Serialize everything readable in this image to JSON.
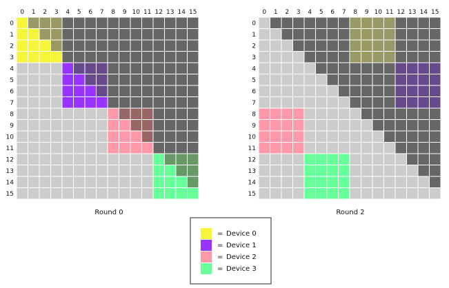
{
  "grid_size": 16,
  "palette": {
    "lower": "#cccccc",
    "upper": "#666666",
    "gridline": "#ffffff"
  },
  "devices": [
    {
      "id": 0,
      "label": "Device 0",
      "color": "#f5f53a",
      "blend": "#999966"
    },
    {
      "id": 1,
      "label": "Device 1",
      "color": "#9933ff",
      "blend": "#664a8c"
    },
    {
      "id": 2,
      "label": "Device 2",
      "color": "#ff99aa",
      "blend": "#996666"
    },
    {
      "id": 3,
      "label": "Device 3",
      "color": "#66ff99",
      "blend": "#669966"
    }
  ],
  "panels": [
    {
      "caption": "Round 0",
      "blocks": [
        {
          "device": 0,
          "rows": [
            0,
            3
          ],
          "cols": [
            0,
            3
          ]
        },
        {
          "device": 1,
          "rows": [
            4,
            7
          ],
          "cols": [
            4,
            7
          ]
        },
        {
          "device": 2,
          "rows": [
            8,
            11
          ],
          "cols": [
            8,
            11
          ]
        },
        {
          "device": 3,
          "rows": [
            12,
            15
          ],
          "cols": [
            12,
            15
          ]
        }
      ]
    },
    {
      "caption": "Round 2",
      "blocks": [
        {
          "device": 0,
          "rows": [
            0,
            3
          ],
          "cols": [
            8,
            11
          ]
        },
        {
          "device": 1,
          "rows": [
            4,
            7
          ],
          "cols": [
            12,
            15
          ]
        },
        {
          "device": 2,
          "rows": [
            8,
            11
          ],
          "cols": [
            0,
            3
          ]
        },
        {
          "device": 3,
          "rows": [
            12,
            15
          ],
          "cols": [
            4,
            7
          ]
        }
      ]
    }
  ],
  "legend": {
    "marker": "="
  }
}
